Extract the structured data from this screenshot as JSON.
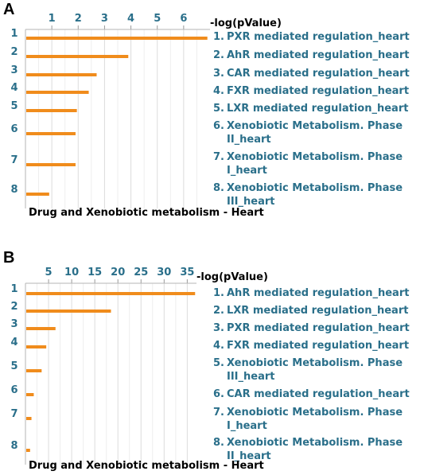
{
  "figure": {
    "panels": [
      "A",
      "B"
    ]
  },
  "chart_data": [
    {
      "type": "bar",
      "panel": "A",
      "orientation": "horizontal",
      "title": "Drug and Xenobiotic metabolism - Heart",
      "xlabel": "-log(pValue)",
      "xticks": [
        "1",
        "2",
        "3",
        "4",
        "5",
        "6"
      ],
      "xlim": [
        0,
        7
      ],
      "grid": true,
      "bar_color": "#f08c1c",
      "categories": [
        "1",
        "2",
        "3",
        "4",
        "5",
        "6",
        "7",
        "8"
      ],
      "values": [
        6.9,
        3.9,
        2.7,
        2.4,
        1.95,
        1.9,
        1.9,
        0.9
      ],
      "legend": [
        [
          "1.",
          "PXR mediated regulation_heart"
        ],
        [
          "2.",
          "AhR mediated regulation_heart"
        ],
        [
          "3.",
          "CAR mediated regulation_heart"
        ],
        [
          "4.",
          "FXR mediated regulation_heart"
        ],
        [
          "5.",
          "LXR mediated regulation_heart"
        ],
        [
          "6.",
          "Xenobiotic Metabolism. Phase",
          "II_heart"
        ],
        [
          "7.",
          "Xenobiotic Metabolism. Phase",
          "I_heart"
        ],
        [
          "8.",
          "Xenobiotic Metabolism. Phase",
          "III_heart"
        ]
      ]
    },
    {
      "type": "bar",
      "panel": "B",
      "orientation": "horizontal",
      "title": "Drug and Xenobiotic metabolism - Heart",
      "xlabel": "-log(pValue)",
      "xticks": [
        "5",
        "10",
        "15",
        "20",
        "25",
        "30",
        "35"
      ],
      "xlim": [
        0,
        37
      ],
      "grid": true,
      "bar_color": "#f08c1c",
      "categories": [
        "1",
        "2",
        "3",
        "4",
        "5",
        "6",
        "7",
        "8"
      ],
      "values": [
        36.7,
        18.5,
        6.5,
        4.5,
        3.5,
        1.8,
        1.3,
        1.0
      ],
      "legend": [
        [
          "1.",
          "AhR mediated regulation_heart"
        ],
        [
          "2.",
          "LXR mediated regulation_heart"
        ],
        [
          "3.",
          "PXR mediated regulation_heart"
        ],
        [
          "4.",
          "FXR mediated regulation_heart"
        ],
        [
          "5.",
          "Xenobiotic Metabolism. Phase",
          "III_heart"
        ],
        [
          "6.",
          "CAR mediated regulation_heart"
        ],
        [
          "7.",
          "Xenobiotic Metabolism. Phase",
          "I_heart"
        ],
        [
          "8.",
          "Xenobiotic Metabolism. Phase",
          "II_heart"
        ]
      ]
    }
  ]
}
